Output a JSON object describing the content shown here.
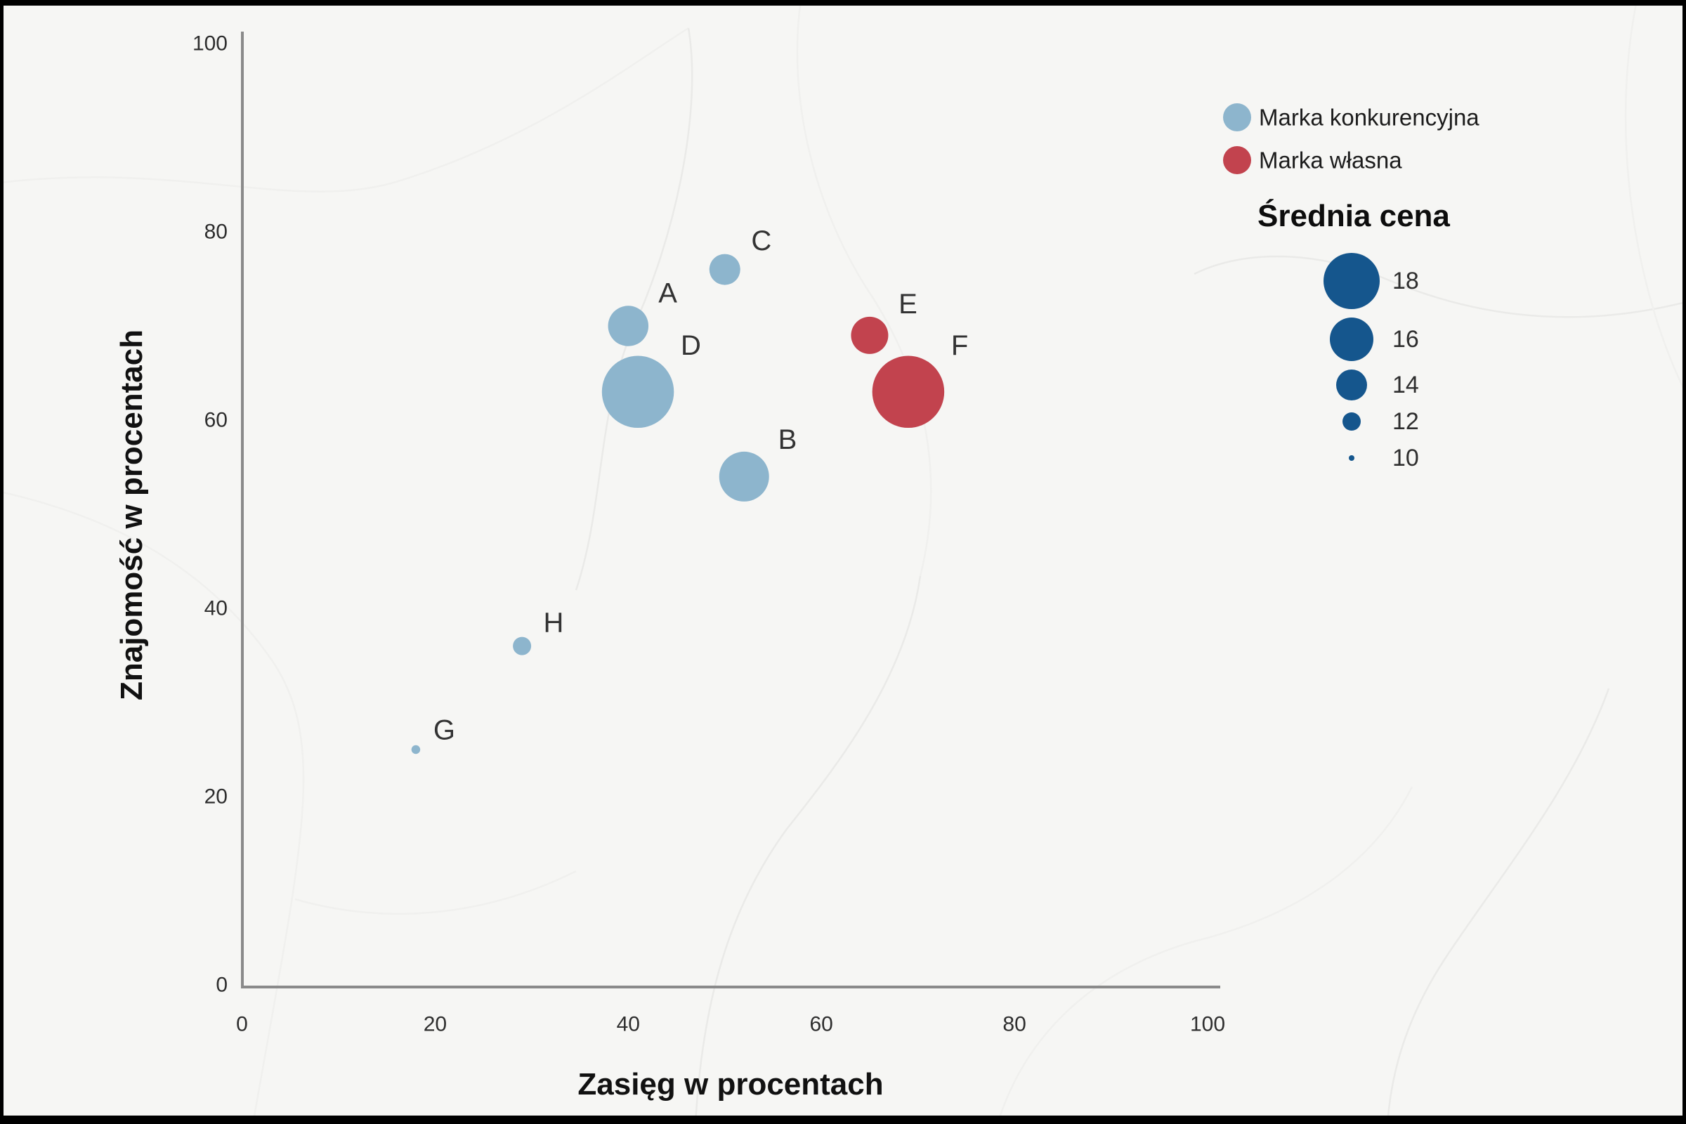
{
  "chart_data": {
    "type": "scatter",
    "subtype": "bubble",
    "xlabel": "Zasięg w procentach",
    "ylabel": "Znajomość w procentach",
    "xlim": [
      0,
      100
    ],
    "ylim": [
      0,
      100
    ],
    "x_ticks": [
      0,
      20,
      40,
      60,
      80,
      100
    ],
    "y_ticks": [
      0,
      20,
      40,
      60,
      80,
      100
    ],
    "grid": false,
    "legend_position": "top-right",
    "series": [
      {
        "name": "Marka konkurencyjna",
        "color": "#8db5cd",
        "points": [
          {
            "label": "A",
            "x": 40,
            "y": 70,
            "price": 15.5
          },
          {
            "label": "B",
            "x": 52,
            "y": 54,
            "price": 17
          },
          {
            "label": "C",
            "x": 50,
            "y": 76,
            "price": 14
          },
          {
            "label": "D",
            "x": 41,
            "y": 63,
            "price": 20.5
          },
          {
            "label": "G",
            "x": 18,
            "y": 25,
            "price": 10.5
          },
          {
            "label": "H",
            "x": 29,
            "y": 36,
            "price": 12
          }
        ]
      },
      {
        "name": "Marka własna",
        "color": "#c2434e",
        "points": [
          {
            "label": "E",
            "x": 65,
            "y": 69,
            "price": 15
          },
          {
            "label": "F",
            "x": 69,
            "y": 63,
            "price": 20.5
          }
        ]
      }
    ],
    "size_legend": {
      "title": "Średnia cena",
      "values": [
        18,
        16,
        14,
        12,
        10
      ],
      "color": "#15568d"
    }
  },
  "style": {
    "axis_color": "#8a8a8a",
    "background": "#f6f6f4",
    "frame_color": "#000000"
  }
}
